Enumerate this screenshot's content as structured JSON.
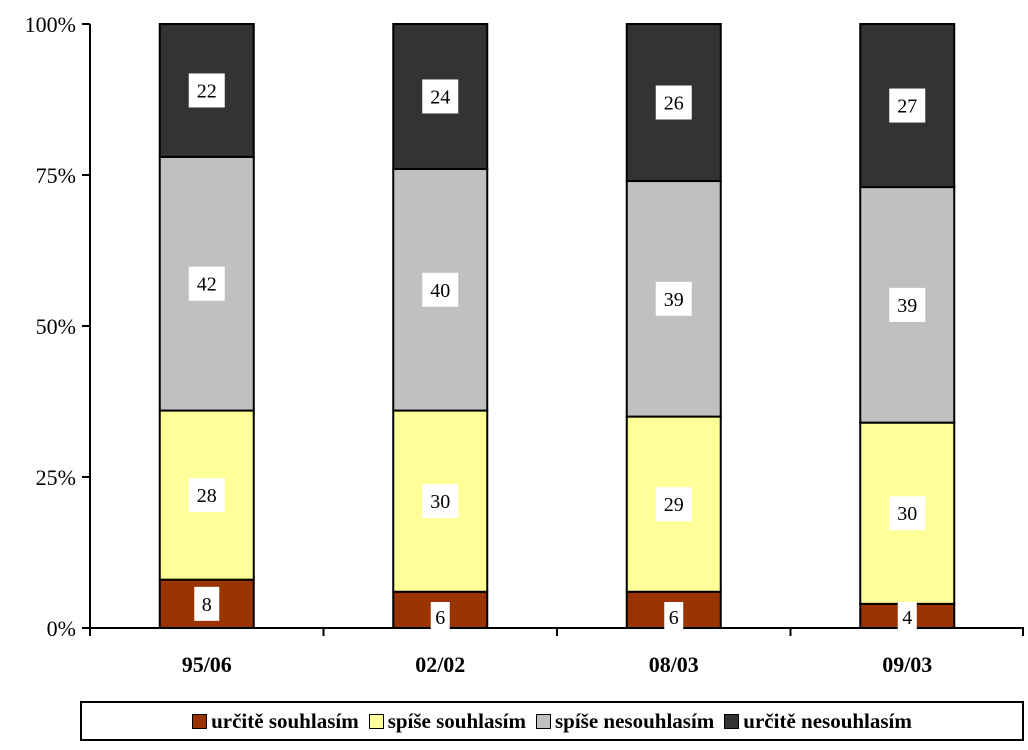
{
  "chart_data": {
    "type": "bar",
    "stacked": true,
    "percent": true,
    "categories": [
      "95/06",
      "02/02",
      "08/03",
      "09/03"
    ],
    "series": [
      {
        "name": "určitě souhlasím",
        "color": "#993300",
        "values": [
          8,
          6,
          6,
          4
        ]
      },
      {
        "name": "spíše souhlasím",
        "color": "#FFFF99",
        "values": [
          28,
          30,
          29,
          30
        ]
      },
      {
        "name": "spíše nesouhlasím",
        "color": "#C0C0C0",
        "values": [
          42,
          40,
          39,
          39
        ]
      },
      {
        "name": "určitě nesouhlasím",
        "color": "#333333",
        "values": [
          22,
          24,
          26,
          27
        ]
      }
    ],
    "yticks": [
      "0%",
      "25%",
      "50%",
      "75%",
      "100%"
    ],
    "ylim": [
      0,
      100
    ],
    "grid": false,
    "legend": "bottom"
  }
}
